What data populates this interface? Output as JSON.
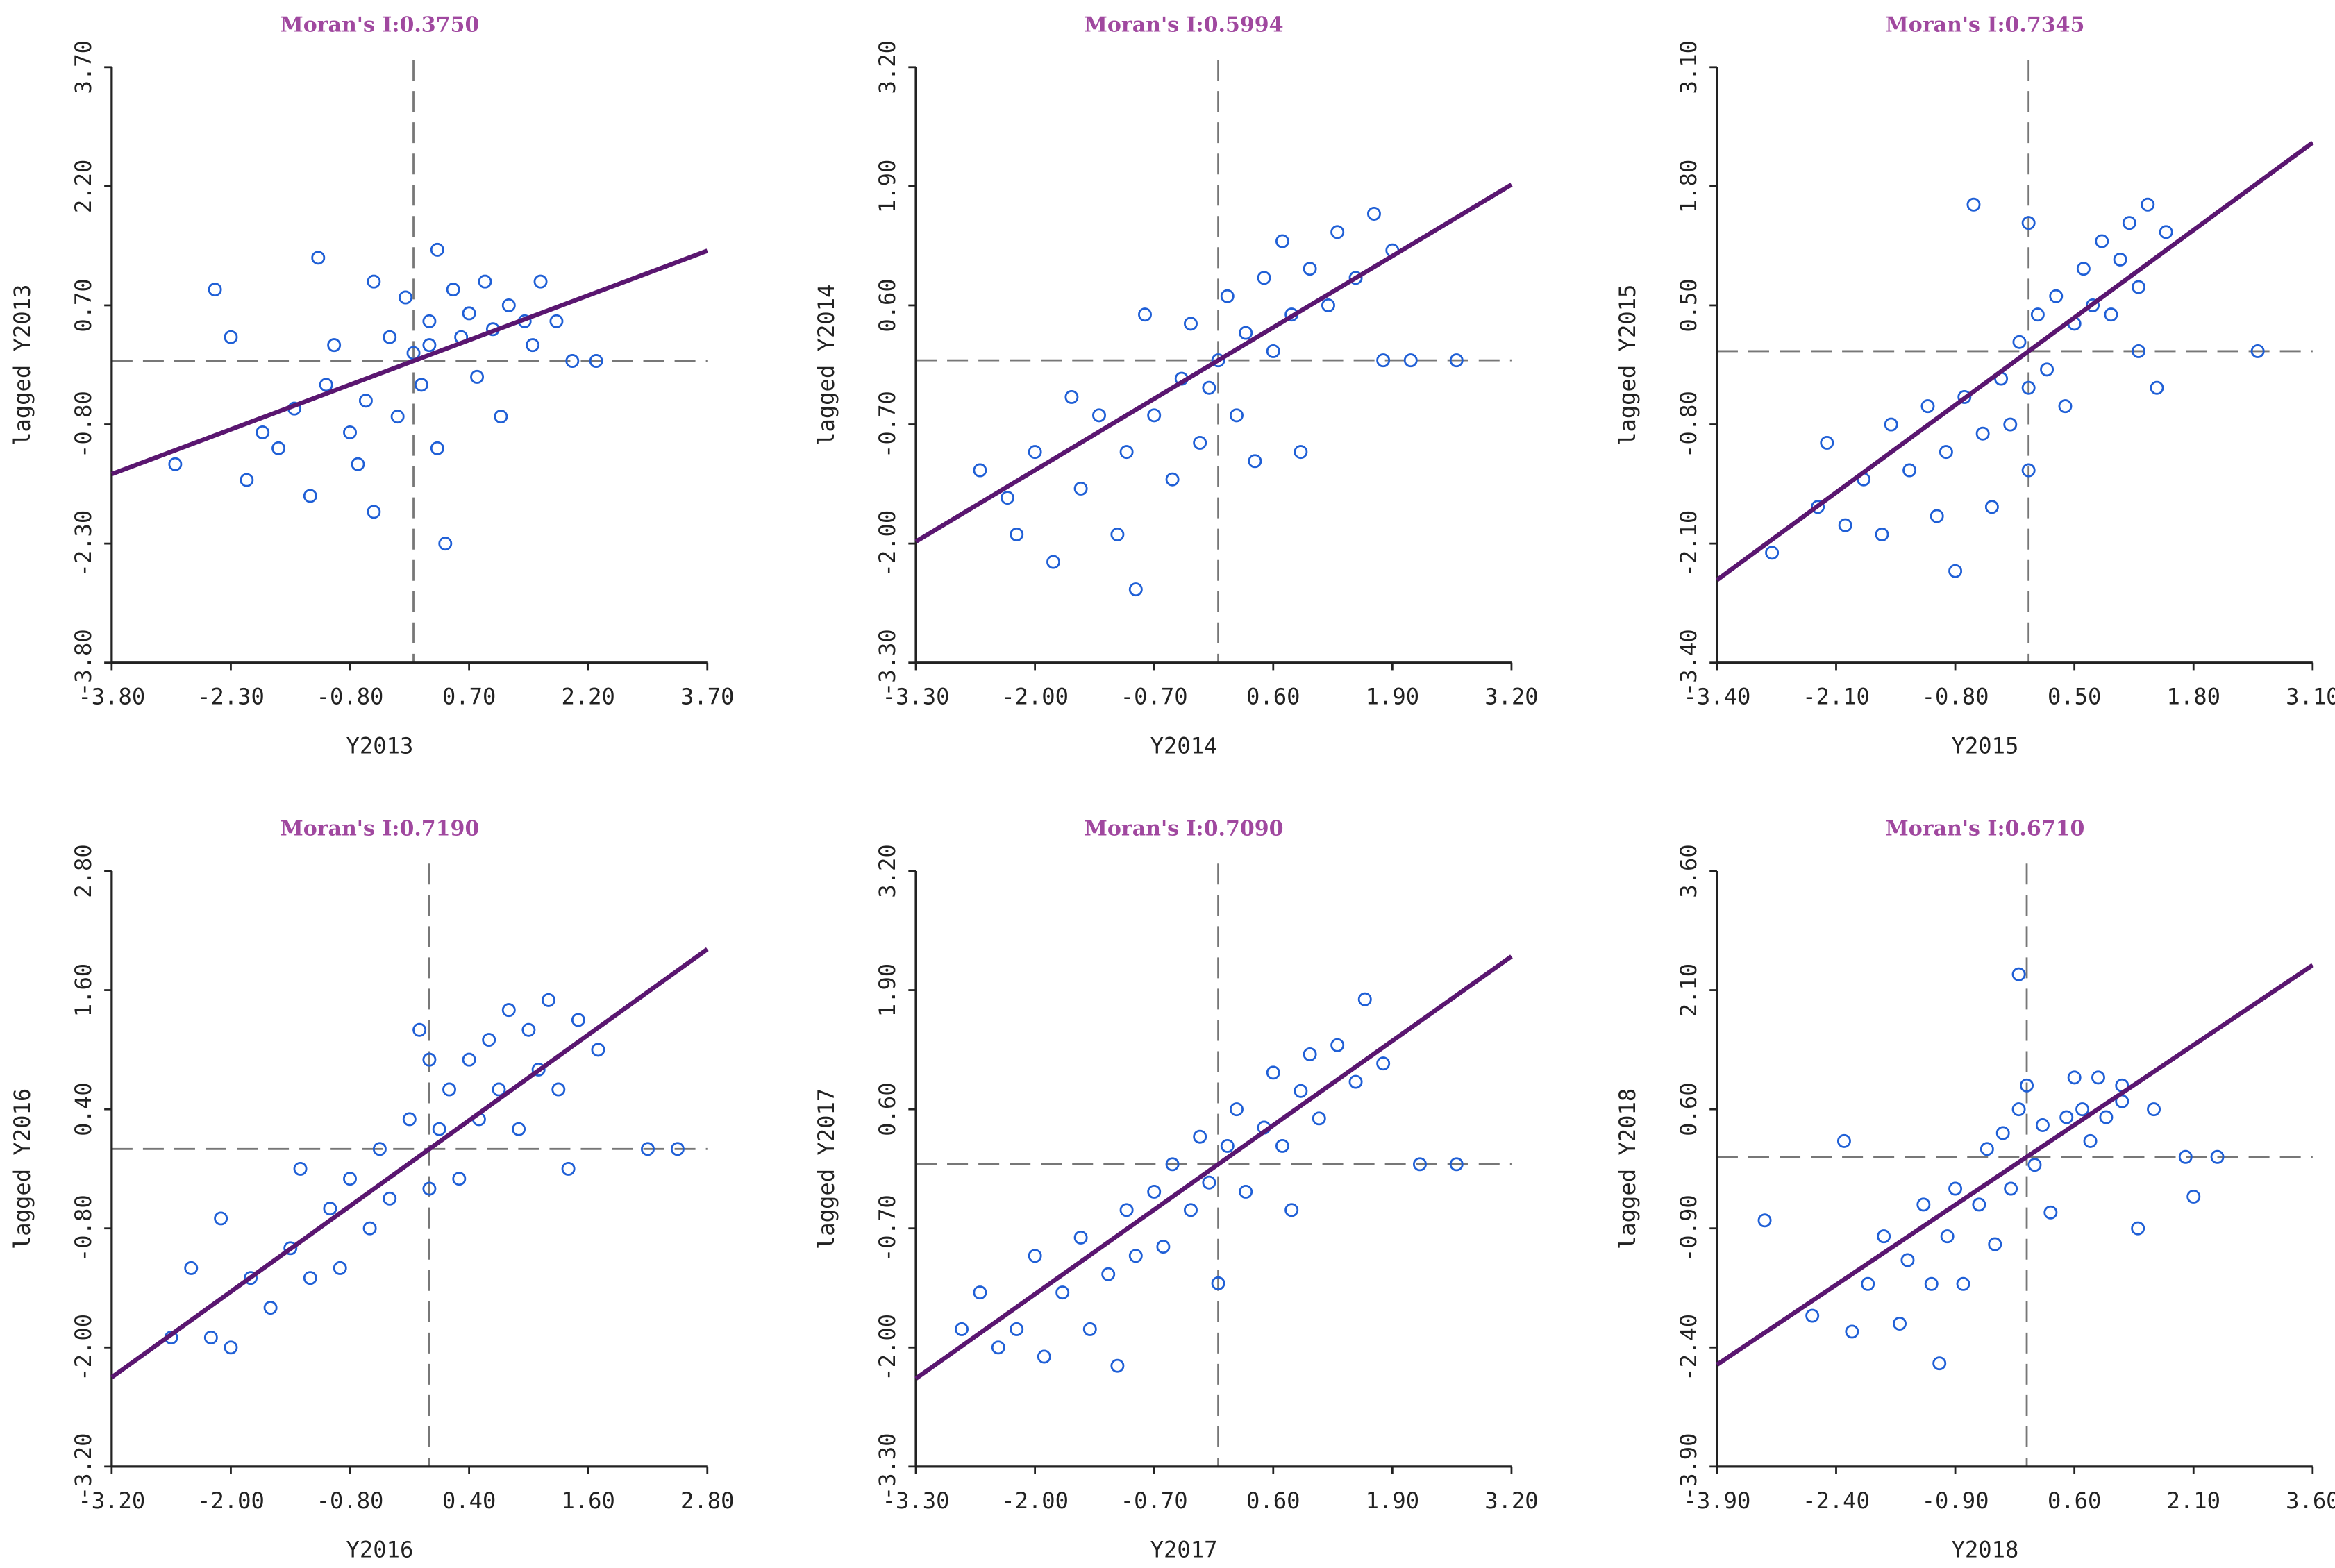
{
  "chart_data": [
    {
      "type": "scatter",
      "title": "Moran's I:0.3750",
      "moran_i": 0.375,
      "xlabel": "Y2013",
      "ylabel": "lagged Y2013",
      "xlim": [
        -3.8,
        3.7
      ],
      "ylim": [
        -3.8,
        3.7
      ],
      "ticks": [
        "-3.80",
        "-2.30",
        "-0.80",
        "0.70",
        "2.20",
        "3.70"
      ],
      "tick_values": [
        -3.8,
        -2.3,
        -0.8,
        0.7,
        2.2,
        3.7
      ],
      "points": [
        [
          -3.0,
          -1.3
        ],
        [
          -2.5,
          0.9
        ],
        [
          -2.3,
          0.3
        ],
        [
          -2.1,
          -1.5
        ],
        [
          -1.9,
          -0.9
        ],
        [
          -1.7,
          -1.1
        ],
        [
          -1.5,
          -0.6
        ],
        [
          -1.3,
          -1.7
        ],
        [
          -1.2,
          1.3
        ],
        [
          -1.1,
          -0.3
        ],
        [
          -1.0,
          0.2
        ],
        [
          -0.8,
          -0.9
        ],
        [
          -0.6,
          -0.5
        ],
        [
          -0.5,
          -1.9
        ],
        [
          -0.5,
          1.0
        ],
        [
          -0.3,
          0.3
        ],
        [
          -0.2,
          -0.7
        ],
        [
          -0.1,
          0.8
        ],
        [
          0.0,
          0.1
        ],
        [
          0.1,
          -0.3
        ],
        [
          0.2,
          0.5
        ],
        [
          0.3,
          -1.1
        ],
        [
          0.4,
          -2.3
        ],
        [
          0.5,
          0.9
        ],
        [
          0.6,
          0.3
        ],
        [
          0.7,
          0.6
        ],
        [
          0.8,
          -0.2
        ],
        [
          0.9,
          1.0
        ],
        [
          1.0,
          0.4
        ],
        [
          1.1,
          -0.7
        ],
        [
          1.2,
          0.7
        ],
        [
          1.4,
          0.5
        ],
        [
          1.6,
          1.0
        ],
        [
          1.8,
          0.5
        ],
        [
          2.0,
          0.0
        ],
        [
          2.3,
          0.0
        ],
        [
          0.3,
          1.4
        ],
        [
          -0.7,
          -1.3
        ],
        [
          1.5,
          0.2
        ],
        [
          0.2,
          0.2
        ]
      ]
    },
    {
      "type": "scatter",
      "title": "Moran's I:0.5994",
      "moran_i": 0.5994,
      "xlabel": "Y2014",
      "ylabel": "lagged Y2014",
      "xlim": [
        -3.3,
        3.2
      ],
      "ylim": [
        -3.3,
        3.2
      ],
      "ticks": [
        "-3.30",
        "-2.00",
        "-0.70",
        "0.60",
        "1.90",
        "3.20"
      ],
      "tick_values": [
        -3.3,
        -2.0,
        -0.7,
        0.6,
        1.9,
        3.2
      ],
      "points": [
        [
          -2.6,
          -1.2
        ],
        [
          -2.3,
          -1.5
        ],
        [
          -2.2,
          -1.9
        ],
        [
          -2.0,
          -1.0
        ],
        [
          -1.8,
          -2.2
        ],
        [
          -1.6,
          -0.4
        ],
        [
          -1.5,
          -1.4
        ],
        [
          -1.3,
          -0.6
        ],
        [
          -1.1,
          -1.9
        ],
        [
          -1.0,
          -1.0
        ],
        [
          -0.9,
          -2.5
        ],
        [
          -0.8,
          0.5
        ],
        [
          -0.7,
          -0.6
        ],
        [
          -0.5,
          -1.3
        ],
        [
          -0.4,
          -0.2
        ],
        [
          -0.3,
          0.4
        ],
        [
          -0.2,
          -0.9
        ],
        [
          -0.1,
          -0.3
        ],
        [
          0.0,
          0.0
        ],
        [
          0.1,
          0.7
        ],
        [
          0.2,
          -0.6
        ],
        [
          0.3,
          0.3
        ],
        [
          0.4,
          -1.1
        ],
        [
          0.5,
          0.9
        ],
        [
          0.6,
          0.1
        ],
        [
          0.7,
          1.3
        ],
        [
          0.8,
          0.5
        ],
        [
          0.9,
          -1.0
        ],
        [
          1.0,
          1.0
        ],
        [
          1.2,
          0.6
        ],
        [
          1.3,
          1.4
        ],
        [
          1.5,
          0.9
        ],
        [
          1.7,
          1.6
        ],
        [
          1.9,
          1.2
        ],
        [
          2.1,
          0.0
        ],
        [
          2.6,
          0.0
        ],
        [
          1.8,
          0.0
        ]
      ]
    },
    {
      "type": "scatter",
      "title": "Moran's I:0.7345",
      "moran_i": 0.7345,
      "xlabel": "Y2015",
      "ylabel": "lagged Y2015",
      "xlim": [
        -3.4,
        3.1
      ],
      "ylim": [
        -3.4,
        3.1
      ],
      "ticks": [
        "-3.40",
        "-2.10",
        "-0.80",
        "0.50",
        "1.80",
        "3.10"
      ],
      "tick_values": [
        -3.4,
        -2.1,
        -0.8,
        0.5,
        1.8,
        3.1
      ],
      "points": [
        [
          -2.8,
          -2.2
        ],
        [
          -2.3,
          -1.7
        ],
        [
          -2.2,
          -1.0
        ],
        [
          -2.0,
          -1.9
        ],
        [
          -1.8,
          -1.4
        ],
        [
          -1.6,
          -2.0
        ],
        [
          -1.5,
          -0.8
        ],
        [
          -1.3,
          -1.3
        ],
        [
          -1.1,
          -0.6
        ],
        [
          -1.0,
          -1.8
        ],
        [
          -0.9,
          -1.1
        ],
        [
          -0.8,
          -2.4
        ],
        [
          -0.7,
          -0.5
        ],
        [
          -0.5,
          -0.9
        ],
        [
          -0.4,
          -1.7
        ],
        [
          -0.3,
          -0.3
        ],
        [
          -0.2,
          -0.8
        ],
        [
          -0.1,
          0.1
        ],
        [
          0.0,
          -0.4
        ],
        [
          0.0,
          -1.3
        ],
        [
          0.1,
          0.4
        ],
        [
          0.2,
          -0.2
        ],
        [
          0.3,
          0.6
        ],
        [
          0.4,
          -0.6
        ],
        [
          0.5,
          0.3
        ],
        [
          0.6,
          0.9
        ],
        [
          0.7,
          0.5
        ],
        [
          0.8,
          1.2
        ],
        [
          0.9,
          0.4
        ],
        [
          1.0,
          1.0
        ],
        [
          1.1,
          1.4
        ],
        [
          1.2,
          0.7
        ],
        [
          1.3,
          1.6
        ],
        [
          1.4,
          -0.4
        ],
        [
          1.5,
          1.3
        ],
        [
          -0.6,
          1.6
        ],
        [
          0.0,
          1.4
        ],
        [
          2.5,
          0.0
        ],
        [
          1.2,
          0.0
        ]
      ]
    },
    {
      "type": "scatter",
      "title": "Moran's I:0.7190",
      "moran_i": 0.719,
      "xlabel": "Y2016",
      "ylabel": "lagged Y2016",
      "xlim": [
        -3.2,
        2.8
      ],
      "ylim": [
        -3.2,
        2.8
      ],
      "ticks": [
        "-3.20",
        "-2.00",
        "-0.80",
        "0.40",
        "1.60",
        "2.80"
      ],
      "tick_values": [
        -3.2,
        -2.0,
        -0.8,
        0.4,
        1.6,
        2.8
      ],
      "points": [
        [
          -2.6,
          -1.9
        ],
        [
          -2.4,
          -1.2
        ],
        [
          -2.2,
          -1.9
        ],
        [
          -2.1,
          -0.7
        ],
        [
          -2.0,
          -2.0
        ],
        [
          -1.8,
          -1.3
        ],
        [
          -1.6,
          -1.6
        ],
        [
          -1.4,
          -1.0
        ],
        [
          -1.3,
          -0.2
        ],
        [
          -1.2,
          -1.3
        ],
        [
          -1.0,
          -0.6
        ],
        [
          -0.9,
          -1.2
        ],
        [
          -0.8,
          -0.3
        ],
        [
          -0.6,
          -0.8
        ],
        [
          -0.5,
          0.0
        ],
        [
          -0.4,
          -0.5
        ],
        [
          -0.2,
          0.3
        ],
        [
          -0.1,
          1.2
        ],
        [
          0.0,
          -0.4
        ],
        [
          0.1,
          0.2
        ],
        [
          0.2,
          0.6
        ],
        [
          0.3,
          -0.3
        ],
        [
          0.4,
          0.9
        ],
        [
          0.5,
          0.3
        ],
        [
          0.6,
          1.1
        ],
        [
          0.7,
          0.6
        ],
        [
          0.8,
          1.4
        ],
        [
          0.9,
          0.2
        ],
        [
          1.0,
          1.2
        ],
        [
          1.1,
          0.8
        ],
        [
          1.2,
          1.5
        ],
        [
          1.3,
          0.6
        ],
        [
          1.4,
          -0.2
        ],
        [
          1.5,
          1.3
        ],
        [
          1.7,
          1.0
        ],
        [
          2.2,
          0.0
        ],
        [
          2.5,
          0.0
        ],
        [
          0.0,
          0.9
        ]
      ]
    },
    {
      "type": "scatter",
      "title": "Moran's I:0.7090",
      "moran_i": 0.709,
      "xlabel": "Y2017",
      "ylabel": "lagged Y2017",
      "xlim": [
        -3.3,
        3.2
      ],
      "ylim": [
        -3.3,
        3.2
      ],
      "ticks": [
        "-3.30",
        "-2.00",
        "-0.70",
        "0.60",
        "1.90",
        "3.20"
      ],
      "tick_values": [
        -3.3,
        -2.0,
        -0.7,
        0.6,
        1.9,
        3.2
      ],
      "points": [
        [
          -2.8,
          -1.8
        ],
        [
          -2.6,
          -1.4
        ],
        [
          -2.4,
          -2.0
        ],
        [
          -2.2,
          -1.8
        ],
        [
          -2.0,
          -1.0
        ],
        [
          -1.9,
          -2.1
        ],
        [
          -1.7,
          -1.4
        ],
        [
          -1.5,
          -0.8
        ],
        [
          -1.4,
          -1.8
        ],
        [
          -1.2,
          -1.2
        ],
        [
          -1.1,
          -2.2
        ],
        [
          -1.0,
          -0.5
        ],
        [
          -0.9,
          -1.0
        ],
        [
          -0.7,
          -0.3
        ],
        [
          -0.6,
          -0.9
        ],
        [
          -0.5,
          0.0
        ],
        [
          -0.3,
          -0.5
        ],
        [
          -0.2,
          0.3
        ],
        [
          -0.1,
          -0.2
        ],
        [
          0.0,
          -1.3
        ],
        [
          0.1,
          0.2
        ],
        [
          0.2,
          0.6
        ],
        [
          0.3,
          -0.3
        ],
        [
          0.5,
          0.4
        ],
        [
          0.6,
          1.0
        ],
        [
          0.7,
          0.2
        ],
        [
          0.8,
          -0.5
        ],
        [
          0.9,
          0.8
        ],
        [
          1.0,
          1.2
        ],
        [
          1.1,
          0.5
        ],
        [
          1.3,
          1.3
        ],
        [
          1.5,
          0.9
        ],
        [
          1.6,
          1.8
        ],
        [
          1.8,
          1.1
        ],
        [
          2.2,
          0.0
        ],
        [
          2.6,
          0.0
        ]
      ]
    },
    {
      "type": "scatter",
      "title": "Moran's I:0.6710",
      "moran_i": 0.671,
      "xlabel": "Y2018",
      "ylabel": "lagged Y2018",
      "xlim": [
        -3.9,
        3.6
      ],
      "ylim": [
        -3.9,
        3.6
      ],
      "ticks": [
        "-3.90",
        "-2.40",
        "-0.90",
        "0.60",
        "2.10",
        "3.60"
      ],
      "tick_values": [
        -3.9,
        -2.4,
        -0.9,
        0.6,
        2.1,
        3.6
      ],
      "points": [
        [
          -3.3,
          -0.8
        ],
        [
          -2.7,
          -2.0
        ],
        [
          -2.3,
          0.2
        ],
        [
          -2.2,
          -2.2
        ],
        [
          -2.0,
          -1.6
        ],
        [
          -1.8,
          -1.0
        ],
        [
          -1.6,
          -2.1
        ],
        [
          -1.5,
          -1.3
        ],
        [
          -1.3,
          -0.6
        ],
        [
          -1.2,
          -1.6
        ],
        [
          -1.1,
          -2.6
        ],
        [
          -1.0,
          -1.0
        ],
        [
          -0.9,
          -0.4
        ],
        [
          -0.8,
          -1.6
        ],
        [
          -0.6,
          -0.6
        ],
        [
          -0.5,
          0.1
        ],
        [
          -0.4,
          -1.1
        ],
        [
          -0.3,
          0.3
        ],
        [
          -0.2,
          -0.4
        ],
        [
          -0.1,
          0.6
        ],
        [
          0.0,
          0.9
        ],
        [
          0.1,
          -0.1
        ],
        [
          0.2,
          0.4
        ],
        [
          0.3,
          -0.7
        ],
        [
          0.5,
          0.5
        ],
        [
          0.6,
          1.0
        ],
        [
          0.7,
          0.6
        ],
        [
          0.8,
          0.2
        ],
        [
          0.9,
          1.0
        ],
        [
          1.0,
          0.5
        ],
        [
          1.2,
          0.7
        ],
        [
          1.4,
          -0.9
        ],
        [
          1.6,
          0.6
        ],
        [
          2.0,
          0.0
        ],
        [
          2.1,
          -0.5
        ],
        [
          2.4,
          0.0
        ],
        [
          -0.1,
          2.3
        ],
        [
          1.2,
          0.9
        ]
      ]
    }
  ],
  "colors": {
    "points": "#1f5fd6",
    "line": "#5a1670",
    "title": "#a0489f",
    "axes": "#222222",
    "dash": "#777777"
  }
}
